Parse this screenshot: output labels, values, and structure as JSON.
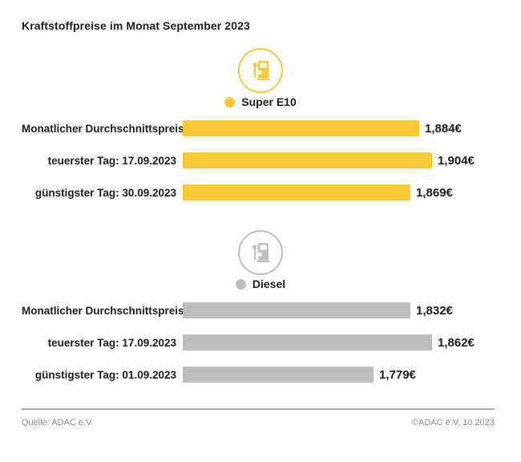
{
  "page": {
    "title": "Kraftstoffpreise im Monat September 2023",
    "footer": {
      "source": "Quelle: ADAC e.V.",
      "copyright": "©ADAC e.V. 10.2023"
    }
  },
  "colors": {
    "super_e10": "#F8C836",
    "diesel": "#BDBDBD",
    "text": "#1d1d1b",
    "footer_text": "#8c8c8c",
    "divider": "#a8a8a8",
    "background": "#ffffff"
  },
  "chart_data": [
    {
      "type": "bar",
      "orientation": "horizontal",
      "group": "Super E10",
      "legend": {
        "label": "Super E10",
        "color": "#F8C836",
        "icon": "fuel-pump-icon"
      },
      "categories": [
        "Monatlicher Durchschnittspreis",
        "teuerster Tag: 17.09.2023",
        "günstigster Tag: 30.09.2023"
      ],
      "values": [
        1.884,
        1.904,
        1.869
      ],
      "value_labels": [
        "1,884€",
        "1,904€",
        "1,869€"
      ],
      "unit": "EUR/Liter",
      "xlim": [
        1.505,
        1.904
      ],
      "grid": false,
      "legend_position": "top-center"
    },
    {
      "type": "bar",
      "orientation": "horizontal",
      "group": "Diesel",
      "legend": {
        "label": "Diesel",
        "color": "#BDBDBD",
        "icon": "fuel-pump-icon"
      },
      "categories": [
        "Monatlicher Durchschnittspreis",
        "teuerster Tag: 17.09.2023",
        "günstigster Tag: 01.09.2023"
      ],
      "values": [
        1.832,
        1.862,
        1.779
      ],
      "value_labels": [
        "1,832€",
        "1,862€",
        "1,779€"
      ],
      "unit": "EUR/Liter",
      "xlim": [
        1.51,
        1.862
      ],
      "grid": false,
      "legend_position": "top-center"
    }
  ]
}
